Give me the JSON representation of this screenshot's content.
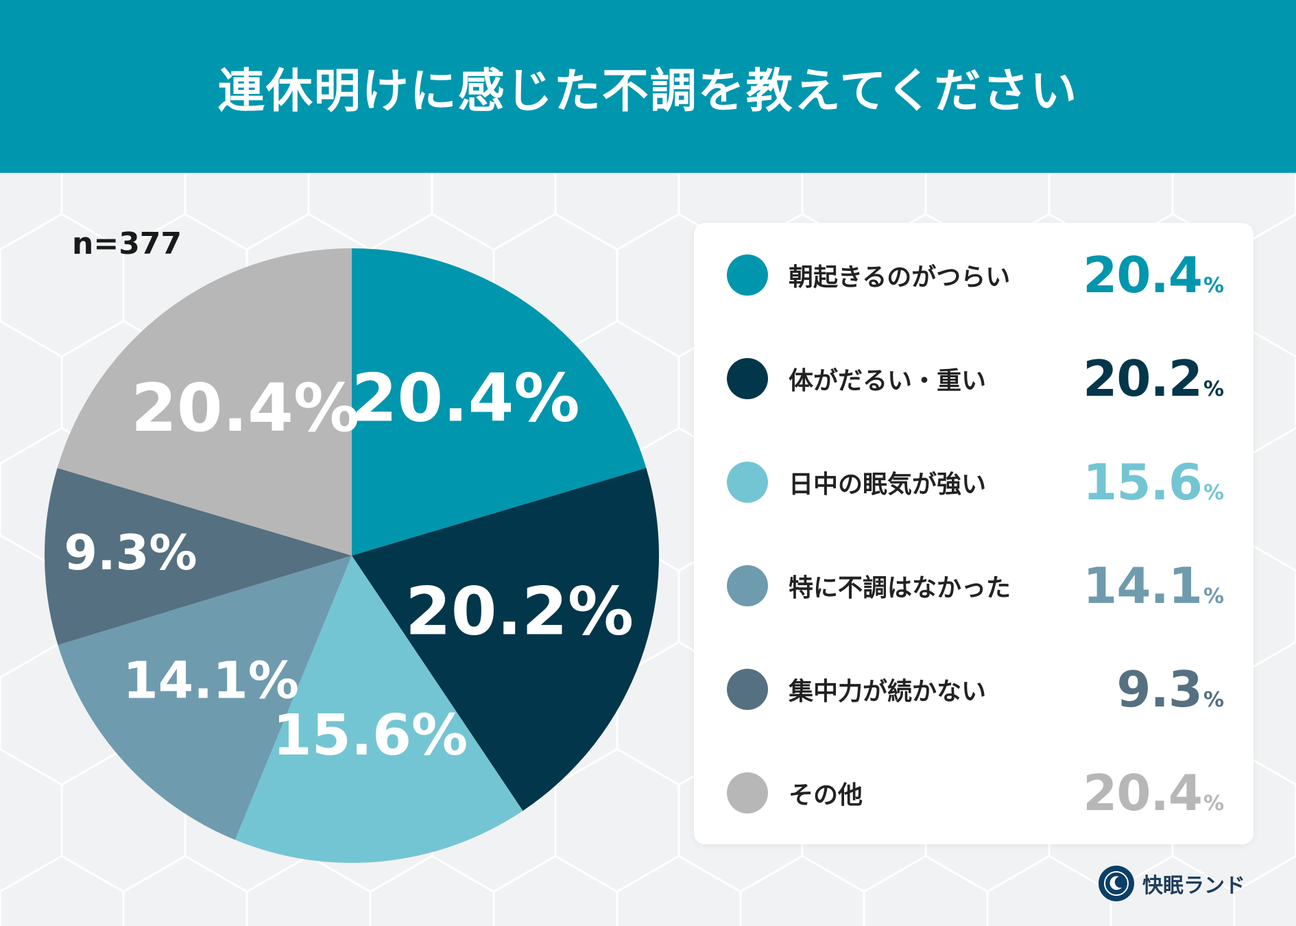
{
  "header": {
    "title": "連休明けに感じた不調を教えてください"
  },
  "sample_size": "n=377",
  "unit": "%",
  "brand": {
    "name": "快眠ランド",
    "logo_icon": "sleeping-moon-logo-icon"
  },
  "chart_data": {
    "type": "pie",
    "title": "連休明けに感じた不調を教えてください",
    "categories": [
      "朝起きるのがつらい",
      "体がだるい・重い",
      "日中の眠気が強い",
      "特に不調はなかった",
      "集中力が続かない",
      "その他"
    ],
    "values": [
      20.4,
      20.2,
      15.6,
      14.1,
      9.3,
      20.4
    ],
    "value_labels": [
      "20.4",
      "20.2",
      "15.6",
      "14.1",
      "9.3",
      "20.4"
    ],
    "colors": [
      "#0096ae",
      "#02364a",
      "#74c5d3",
      "#6f9bae",
      "#557080",
      "#b7b7b7"
    ],
    "start_angle": "12 o'clock",
    "direction": "clockwise",
    "legend_position": "right"
  }
}
